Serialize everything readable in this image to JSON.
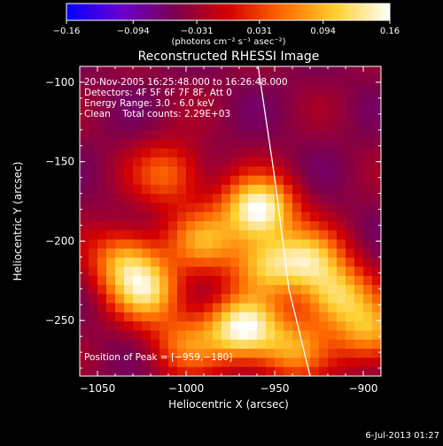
{
  "chart_data": {
    "type": "heatmap",
    "title": "Reconstructed RHESSI Image",
    "xlabel": "Heliocentric X (arcsec)",
    "ylabel": "Heliocentric Y (arcsec)",
    "xlim": [
      -1060,
      -890
    ],
    "ylim": [
      -285,
      -90
    ],
    "x_ticks": [
      -1050,
      -1000,
      -950,
      -900
    ],
    "x_tick_labels": [
      "−1050",
      "−1000",
      "−950",
      "−900"
    ],
    "y_ticks": [
      -100,
      -150,
      -200,
      -250
    ],
    "y_tick_labels": [
      "−100",
      "−150",
      "−200",
      "−250"
    ],
    "colorbar": {
      "min": -0.16,
      "max": 0.16,
      "ticks": [
        -0.16,
        -0.094,
        -0.031,
        0.031,
        0.094,
        0.16
      ],
      "tick_labels": [
        "−0.16",
        "−0.094",
        "−0.031",
        "0.031",
        "0.094",
        "0.16"
      ],
      "unit_label": "(photons cm⁻² s⁻¹ asec⁻²)",
      "colors": [
        "#0000ff",
        "#6a00d0",
        "#7a0050",
        "#d40000",
        "#ff6a00",
        "#ffd030",
        "#ffffff"
      ]
    },
    "annotations": [
      "20-Nov-2005 16:25:48.000 to 16:26:48.000",
      "Detectors: 4F 5F 6F 7F 8F, Att 0",
      "Energy Range: 3.0 - 6.0 keV",
      "Clean    Total counts: 2.29E+03"
    ],
    "peak_label": "Position of Peak = [−959,−180]",
    "peak": {
      "x": -959,
      "y": -180
    },
    "sources": [
      {
        "x": -959,
        "y": -180,
        "value": 0.16
      },
      {
        "x": -968,
        "y": -255,
        "value": 0.15
      },
      {
        "x": -1035,
        "y": -212,
        "value": 0.08
      },
      {
        "x": -1022,
        "y": -232,
        "value": 0.1
      },
      {
        "x": -915,
        "y": -235,
        "value": 0.1
      },
      {
        "x": -930,
        "y": -212,
        "value": 0.09
      },
      {
        "x": -895,
        "y": -258,
        "value": 0.08
      },
      {
        "x": -1010,
        "y": -158,
        "value": 0.05
      },
      {
        "x": -990,
        "y": -200,
        "value": 0.07
      },
      {
        "x": -955,
        "y": -215,
        "value": 0.08
      },
      {
        "x": -940,
        "y": -268,
        "value": 0.07
      },
      {
        "x": -1000,
        "y": -265,
        "value": 0.05
      }
    ],
    "limb_curve": [
      [
        -960,
        -85
      ],
      [
        -950,
        -160
      ],
      [
        -942,
        -230
      ],
      [
        -930,
        -285
      ]
    ],
    "grid": false
  },
  "footer": {
    "timestamp": "6-Jul-2013 01:27"
  }
}
